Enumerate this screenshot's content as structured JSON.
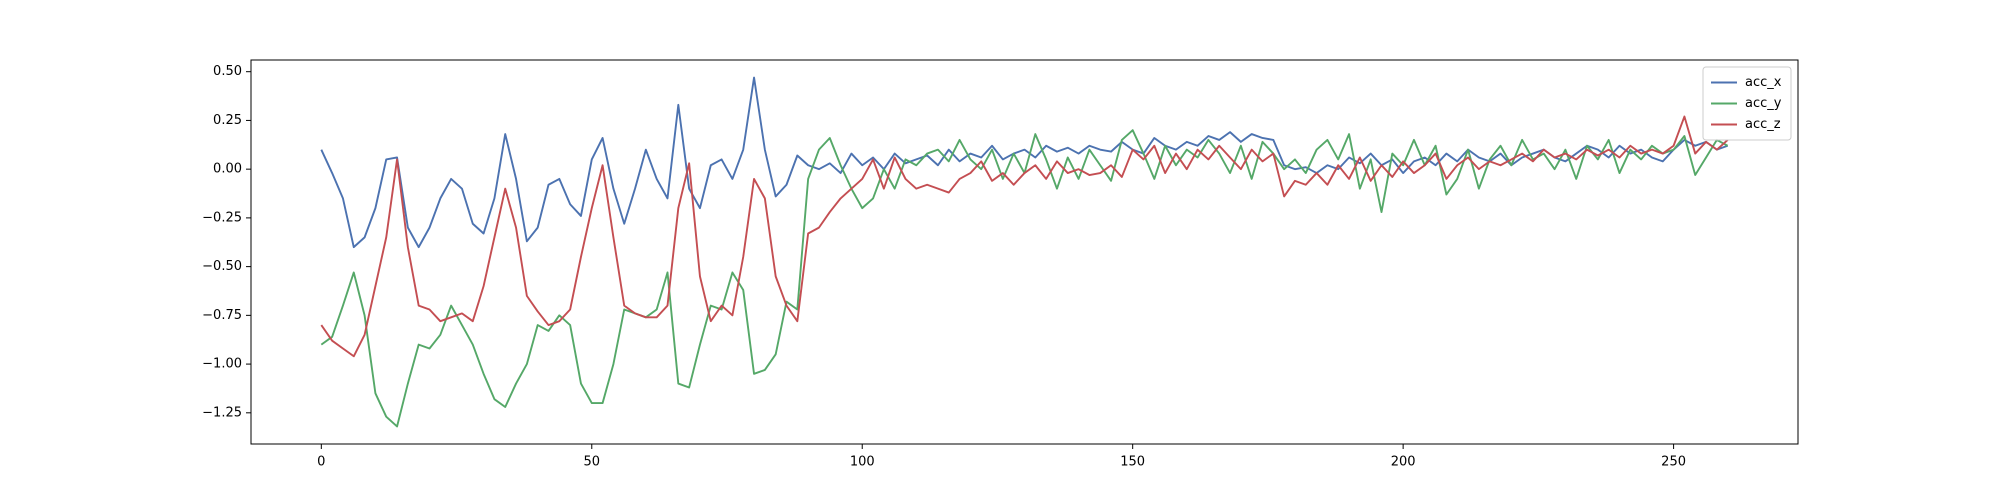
{
  "chart_data": {
    "type": "line",
    "x": [
      0,
      2,
      4,
      6,
      8,
      10,
      12,
      14,
      16,
      18,
      20,
      22,
      24,
      26,
      28,
      30,
      32,
      34,
      36,
      38,
      40,
      42,
      44,
      46,
      48,
      50,
      52,
      54,
      56,
      58,
      60,
      62,
      64,
      66,
      68,
      70,
      72,
      74,
      76,
      78,
      80,
      82,
      84,
      86,
      88,
      90,
      92,
      94,
      96,
      98,
      100,
      102,
      104,
      106,
      108,
      110,
      112,
      114,
      116,
      118,
      120,
      122,
      124,
      126,
      128,
      130,
      132,
      134,
      136,
      138,
      140,
      142,
      144,
      146,
      148,
      150,
      152,
      154,
      156,
      158,
      160,
      162,
      164,
      166,
      168,
      170,
      172,
      174,
      176,
      178,
      180,
      182,
      184,
      186,
      188,
      190,
      192,
      194,
      196,
      198,
      200,
      202,
      204,
      206,
      208,
      210,
      212,
      214,
      216,
      218,
      220,
      222,
      224,
      226,
      228,
      230,
      232,
      234,
      236,
      238,
      240,
      242,
      244,
      246,
      248,
      250,
      252,
      254,
      256,
      258,
      260
    ],
    "series": [
      {
        "name": "acc_x",
        "color": "#4c72b0",
        "values": [
          0.1,
          -0.02,
          -0.15,
          -0.4,
          -0.35,
          -0.2,
          0.05,
          0.06,
          -0.3,
          -0.4,
          -0.3,
          -0.15,
          -0.05,
          -0.1,
          -0.28,
          -0.33,
          -0.15,
          0.18,
          -0.05,
          -0.37,
          -0.3,
          -0.08,
          -0.05,
          -0.18,
          -0.24,
          0.05,
          0.16,
          -0.1,
          -0.28,
          -0.1,
          0.1,
          -0.05,
          -0.15,
          0.33,
          -0.1,
          -0.2,
          0.02,
          0.05,
          -0.05,
          0.1,
          0.47,
          0.1,
          -0.14,
          -0.08,
          0.07,
          0.02,
          0.0,
          0.03,
          -0.02,
          0.08,
          0.02,
          0.06,
          0.0,
          0.08,
          0.03,
          0.05,
          0.07,
          0.02,
          0.1,
          0.04,
          0.08,
          0.06,
          0.12,
          0.05,
          0.08,
          0.1,
          0.06,
          0.12,
          0.09,
          0.11,
          0.08,
          0.12,
          0.1,
          0.09,
          0.14,
          0.1,
          0.08,
          0.16,
          0.12,
          0.1,
          0.14,
          0.12,
          0.17,
          0.15,
          0.19,
          0.14,
          0.18,
          0.16,
          0.15,
          0.02,
          0.0,
          0.01,
          -0.02,
          0.02,
          0.0,
          0.06,
          0.03,
          0.08,
          0.02,
          0.05,
          -0.02,
          0.04,
          0.06,
          0.02,
          0.08,
          0.04,
          0.1,
          0.06,
          0.04,
          0.08,
          0.02,
          0.06,
          0.08,
          0.1,
          0.06,
          0.04,
          0.08,
          0.12,
          0.1,
          0.06,
          0.12,
          0.08,
          0.1,
          0.06,
          0.04,
          0.1,
          0.15,
          0.12,
          0.14,
          0.1,
          0.12
        ]
      },
      {
        "name": "acc_y",
        "color": "#55a868",
        "values": [
          -0.9,
          -0.86,
          -0.7,
          -0.53,
          -0.75,
          -1.15,
          -1.27,
          -1.32,
          -1.1,
          -0.9,
          -0.92,
          -0.85,
          -0.7,
          -0.8,
          -0.9,
          -1.05,
          -1.18,
          -1.22,
          -1.1,
          -1.0,
          -0.8,
          -0.83,
          -0.75,
          -0.8,
          -1.1,
          -1.2,
          -1.2,
          -1.0,
          -0.72,
          -0.74,
          -0.76,
          -0.72,
          -0.53,
          -1.1,
          -1.12,
          -0.9,
          -0.7,
          -0.72,
          -0.53,
          -0.62,
          -1.05,
          -1.03,
          -0.95,
          -0.68,
          -0.72,
          -0.05,
          0.1,
          0.16,
          0.02,
          -0.1,
          -0.2,
          -0.15,
          0.0,
          -0.1,
          0.05,
          0.02,
          0.08,
          0.1,
          0.04,
          0.15,
          0.05,
          0.0,
          0.1,
          -0.05,
          0.08,
          -0.02,
          0.18,
          0.05,
          -0.1,
          0.06,
          -0.05,
          0.1,
          0.02,
          -0.06,
          0.15,
          0.2,
          0.08,
          -0.05,
          0.12,
          0.02,
          0.1,
          0.06,
          0.15,
          0.08,
          -0.02,
          0.12,
          -0.05,
          0.14,
          0.08,
          0.0,
          0.05,
          -0.02,
          0.1,
          0.15,
          0.05,
          0.18,
          -0.1,
          0.05,
          -0.22,
          0.08,
          0.02,
          0.15,
          0.02,
          0.12,
          -0.13,
          -0.05,
          0.1,
          -0.1,
          0.05,
          0.12,
          0.02,
          0.15,
          0.05,
          0.08,
          0.0,
          0.1,
          -0.05,
          0.12,
          0.05,
          0.15,
          -0.02,
          0.1,
          0.05,
          0.12,
          0.08,
          0.1,
          0.17,
          -0.03,
          0.06,
          0.15,
          0.12
        ]
      },
      {
        "name": "acc_z",
        "color": "#c44e52",
        "values": [
          -0.8,
          -0.88,
          -0.92,
          -0.96,
          -0.85,
          -0.6,
          -0.35,
          0.05,
          -0.4,
          -0.7,
          -0.72,
          -0.78,
          -0.76,
          -0.74,
          -0.78,
          -0.6,
          -0.35,
          -0.1,
          -0.3,
          -0.65,
          -0.73,
          -0.8,
          -0.78,
          -0.72,
          -0.45,
          -0.2,
          0.02,
          -0.35,
          -0.7,
          -0.74,
          -0.76,
          -0.76,
          -0.7,
          -0.2,
          0.03,
          -0.55,
          -0.78,
          -0.7,
          -0.75,
          -0.45,
          -0.05,
          -0.15,
          -0.55,
          -0.7,
          -0.78,
          -0.33,
          -0.3,
          -0.22,
          -0.15,
          -0.1,
          -0.05,
          0.05,
          -0.1,
          0.06,
          -0.05,
          -0.1,
          -0.08,
          -0.1,
          -0.12,
          -0.05,
          -0.02,
          0.04,
          -0.06,
          -0.02,
          -0.08,
          -0.02,
          0.02,
          -0.05,
          0.04,
          -0.02,
          0.0,
          -0.03,
          -0.02,
          0.02,
          -0.04,
          0.1,
          0.05,
          0.12,
          -0.02,
          0.08,
          0.0,
          0.1,
          0.05,
          0.12,
          0.06,
          0.0,
          0.1,
          0.04,
          0.08,
          -0.14,
          -0.06,
          -0.08,
          -0.02,
          -0.08,
          0.02,
          -0.05,
          0.06,
          -0.06,
          0.02,
          -0.04,
          0.04,
          -0.02,
          0.02,
          0.08,
          -0.05,
          0.02,
          0.06,
          0.0,
          0.04,
          0.02,
          0.05,
          0.08,
          0.04,
          0.1,
          0.06,
          0.08,
          0.05,
          0.1,
          0.07,
          0.1,
          0.06,
          0.12,
          0.08,
          0.1,
          0.08,
          0.12,
          0.27,
          0.08,
          0.14,
          0.1,
          0.15
        ]
      }
    ],
    "xlim": [
      -13,
      273
    ],
    "ylim": [
      -1.41,
      0.56
    ],
    "xticks": [
      0,
      50,
      100,
      150,
      200,
      250
    ],
    "yticks": [
      {
        "value": -1.25,
        "label": "−1.25"
      },
      {
        "value": -1.0,
        "label": "−1.00"
      },
      {
        "value": -0.75,
        "label": "−0.75"
      },
      {
        "value": -0.5,
        "label": "−0.50"
      },
      {
        "value": -0.25,
        "label": "−0.25"
      },
      {
        "value": 0.0,
        "label": "0.00"
      },
      {
        "value": 0.25,
        "label": "0.25"
      },
      {
        "value": 0.5,
        "label": "0.50"
      }
    ],
    "legend": "upper right"
  }
}
